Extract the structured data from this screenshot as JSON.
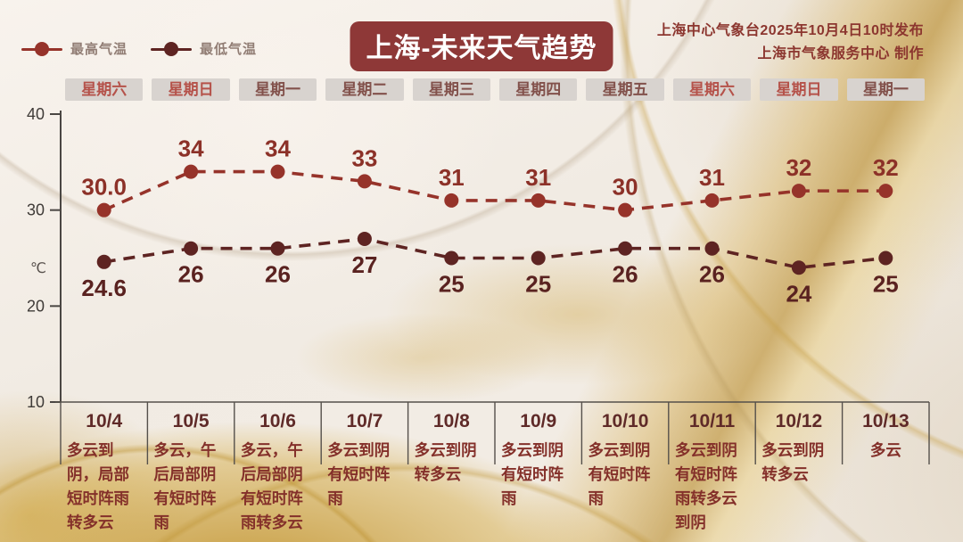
{
  "header": {
    "title": "上海-未来天气趋势",
    "credit_line1": "上海中心气象台2025年10月4日10时发布",
    "credit_line2": "上海市气象服务中心 制作"
  },
  "legend": {
    "max_label": "最高气温",
    "min_label": "最低气温"
  },
  "colors": {
    "title_bg": "#8e3837",
    "max_line": "#96332a",
    "min_line": "#5e2422",
    "weekday_text": "#82514b",
    "weekend_text": "#b5524a",
    "axis": "#4a4643",
    "gold_accent": "#c0922e"
  },
  "chart_data": {
    "type": "line",
    "categories": [
      "10/4",
      "10/5",
      "10/6",
      "10/7",
      "10/8",
      "10/9",
      "10/10",
      "10/11",
      "10/12",
      "10/13"
    ],
    "series": [
      {
        "name": "最高气温",
        "color": "#96332a",
        "label_color": "#8c3128",
        "values": [
          30.0,
          34,
          34,
          33,
          31,
          31,
          30,
          31,
          32,
          32
        ],
        "labels": [
          "30.0",
          "34",
          "34",
          "33",
          "31",
          "31",
          "30",
          "31",
          "32",
          "32"
        ]
      },
      {
        "name": "最低气温",
        "color": "#5e2422",
        "label_color": "#5a2220",
        "values": [
          24.6,
          26,
          26,
          27,
          25,
          25,
          26,
          26,
          24,
          25
        ],
        "labels": [
          "24.6",
          "26",
          "26",
          "27",
          "25",
          "25",
          "26",
          "26",
          "24",
          "25"
        ]
      }
    ],
    "ylabel": "℃",
    "yticks": [
      40,
      30,
      20,
      10
    ],
    "ylim": [
      10,
      40
    ],
    "grid": false,
    "legend_position": "top-left",
    "line_style": "dashed"
  },
  "forecast": [
    {
      "date": "10/4",
      "week": "星期六",
      "weekend": true,
      "desc": "多云到阴，局部短时阵雨转多云"
    },
    {
      "date": "10/5",
      "week": "星期日",
      "weekend": true,
      "desc": "多云，午后局部阴有短时阵雨"
    },
    {
      "date": "10/6",
      "week": "星期一",
      "weekend": false,
      "desc": "多云，午后局部阴有短时阵雨转多云"
    },
    {
      "date": "10/7",
      "week": "星期二",
      "weekend": false,
      "desc": "多云到阴有短时阵雨"
    },
    {
      "date": "10/8",
      "week": "星期三",
      "weekend": false,
      "desc": "多云到阴转多云"
    },
    {
      "date": "10/9",
      "week": "星期四",
      "weekend": false,
      "desc": "多云到阴有短时阵雨"
    },
    {
      "date": "10/10",
      "week": "星期五",
      "weekend": false,
      "desc": "多云到阴有短时阵雨"
    },
    {
      "date": "10/11",
      "week": "星期六",
      "weekend": true,
      "desc": "多云到阴有短时阵雨转多云到阴"
    },
    {
      "date": "10/12",
      "week": "星期日",
      "weekend": true,
      "desc": "多云到阴转多云"
    },
    {
      "date": "10/13",
      "week": "星期一",
      "weekend": false,
      "desc": "多云"
    }
  ]
}
